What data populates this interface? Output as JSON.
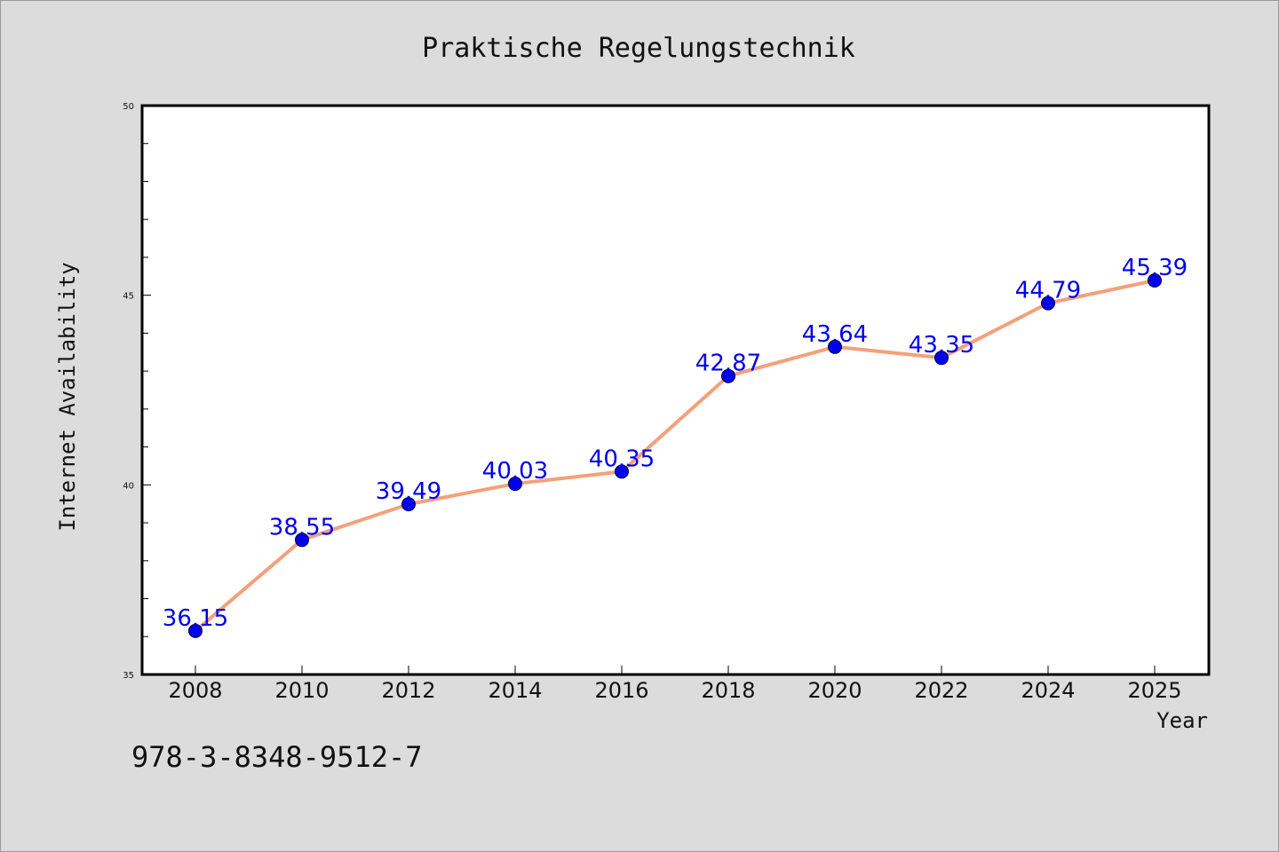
{
  "chart_data": {
    "type": "line",
    "title": "Praktische Regelungstechnik",
    "xlabel": "Year",
    "ylabel": "Internet Availability",
    "x": [
      "2008",
      "2010",
      "2012",
      "2014",
      "2016",
      "2018",
      "2020",
      "2022",
      "2024",
      "2025"
    ],
    "series": [
      {
        "values": [
          36.15,
          38.55,
          39.49,
          40.03,
          40.35,
          42.87,
          43.64,
          43.35,
          44.79,
          45.39
        ],
        "data_labels": [
          "36.15",
          "38.55",
          "39.49",
          "40.03",
          "40.35",
          "42.87",
          "43.64",
          "43.35",
          "44.79",
          "45.39"
        ],
        "line_color": "#f4a07a",
        "marker_color": "#0000ee",
        "label_color": "#0000ee"
      }
    ],
    "ylim": [
      35,
      50
    ],
    "yticks": [
      "35",
      "40",
      "45",
      "50"
    ],
    "grid": false,
    "legend": "none"
  },
  "annotation": {
    "isbn": "978-3-8348-9512-7"
  },
  "colors": {
    "background": "#dcdcdc",
    "plot_background": "#ffffff",
    "axes": "#000000"
  }
}
